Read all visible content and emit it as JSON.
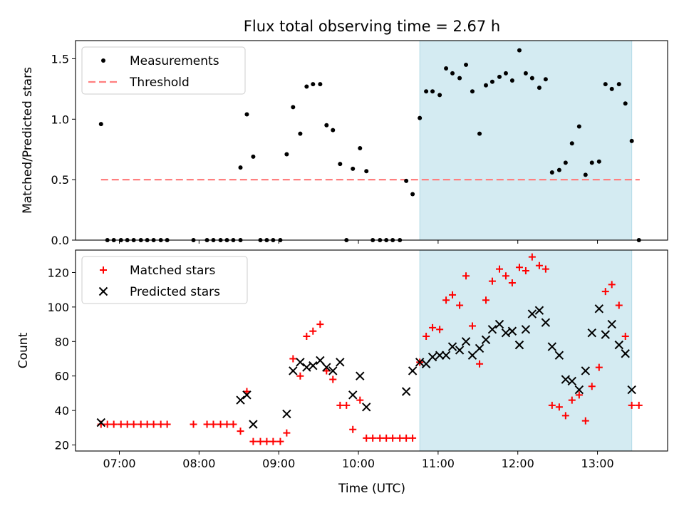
{
  "figure": {
    "title": "Flux total observing time = 2.67 h",
    "xlabel": "Time (UTC)",
    "colors": {
      "shade": "#add8e6",
      "measurement": "#000000",
      "threshold": "#ff7f7f",
      "matched": "#ff0000",
      "predicted": "#000000"
    }
  },
  "chart_data": [
    {
      "type": "scatter",
      "ylabel": "Matched/Predicted stars",
      "xlim": [
        6.45,
        13.88
      ],
      "ylim": [
        0,
        1.65
      ],
      "x_ticks": [
        7,
        8,
        9,
        10,
        11,
        12,
        13
      ],
      "x_tick_labels": [
        "07:00",
        "08:00",
        "09:00",
        "10:00",
        "11:00",
        "12:00",
        "13:00"
      ],
      "y_ticks": [
        0.0,
        0.5,
        1.0,
        1.5
      ],
      "y_tick_labels": [
        "0.0",
        "0.5",
        "1.0",
        "1.5"
      ],
      "shaded_span": [
        10.77,
        13.43
      ],
      "threshold": {
        "name": "Threshold",
        "y": 0.5,
        "x_range": [
          6.77,
          13.53
        ]
      },
      "legend": {
        "placement": "top-left",
        "entries": [
          "Measurements",
          "Threshold"
        ]
      },
      "series": [
        {
          "name": "Measurements",
          "marker": "dot",
          "points": [
            [
              6.77,
              0.96
            ],
            [
              6.85,
              0
            ],
            [
              6.93,
              0
            ],
            [
              7.02,
              0
            ],
            [
              7.1,
              0
            ],
            [
              7.18,
              0
            ],
            [
              7.27,
              0
            ],
            [
              7.35,
              0
            ],
            [
              7.43,
              0
            ],
            [
              7.52,
              0
            ],
            [
              7.6,
              0
            ],
            [
              7.93,
              0
            ],
            [
              8.1,
              0
            ],
            [
              8.18,
              0
            ],
            [
              8.27,
              0
            ],
            [
              8.35,
              0
            ],
            [
              8.43,
              0
            ],
            [
              8.52,
              0
            ],
            [
              8.52,
              0.6
            ],
            [
              8.6,
              1.04
            ],
            [
              8.68,
              0.69
            ],
            [
              8.77,
              0
            ],
            [
              8.85,
              0
            ],
            [
              8.93,
              0
            ],
            [
              9.02,
              0
            ],
            [
              9.1,
              0.71
            ],
            [
              9.18,
              1.1
            ],
            [
              9.27,
              0.88
            ],
            [
              9.35,
              1.27
            ],
            [
              9.43,
              1.29
            ],
            [
              9.52,
              1.29
            ],
            [
              9.6,
              0.95
            ],
            [
              9.68,
              0.91
            ],
            [
              9.77,
              0.63
            ],
            [
              9.85,
              0
            ],
            [
              9.93,
              0.59
            ],
            [
              10.02,
              0.76
            ],
            [
              10.1,
              0.57
            ],
            [
              10.18,
              0
            ],
            [
              10.27,
              0
            ],
            [
              10.35,
              0
            ],
            [
              10.43,
              0
            ],
            [
              10.52,
              0
            ],
            [
              10.6,
              0.49
            ],
            [
              10.68,
              0.38
            ],
            [
              10.77,
              1.01
            ],
            [
              10.85,
              1.23
            ],
            [
              10.93,
              1.23
            ],
            [
              11.02,
              1.2
            ],
            [
              11.1,
              1.42
            ],
            [
              11.18,
              1.38
            ],
            [
              11.27,
              1.34
            ],
            [
              11.35,
              1.45
            ],
            [
              11.43,
              1.23
            ],
            [
              11.52,
              0.88
            ],
            [
              11.6,
              1.28
            ],
            [
              11.68,
              1.31
            ],
            [
              11.77,
              1.35
            ],
            [
              11.85,
              1.38
            ],
            [
              11.93,
              1.32
            ],
            [
              12.02,
              1.57
            ],
            [
              12.1,
              1.38
            ],
            [
              12.18,
              1.34
            ],
            [
              12.27,
              1.26
            ],
            [
              12.35,
              1.33
            ],
            [
              12.43,
              0.56
            ],
            [
              12.52,
              0.58
            ],
            [
              12.6,
              0.64
            ],
            [
              12.68,
              0.8
            ],
            [
              12.77,
              0.94
            ],
            [
              12.85,
              0.54
            ],
            [
              12.93,
              0.64
            ],
            [
              13.02,
              0.65
            ],
            [
              13.1,
              1.29
            ],
            [
              13.18,
              1.25
            ],
            [
              13.27,
              1.29
            ],
            [
              13.35,
              1.13
            ],
            [
              13.43,
              0.82
            ],
            [
              13.52,
              0
            ]
          ]
        }
      ]
    },
    {
      "type": "scatter",
      "ylabel": "Count",
      "xlabel": "Time (UTC)",
      "xlim": [
        6.45,
        13.88
      ],
      "ylim": [
        16.5,
        133
      ],
      "x_ticks": [
        7,
        8,
        9,
        10,
        11,
        12,
        13
      ],
      "x_tick_labels": [
        "07:00",
        "08:00",
        "09:00",
        "10:00",
        "11:00",
        "12:00",
        "13:00"
      ],
      "y_ticks": [
        20,
        40,
        60,
        80,
        100,
        120
      ],
      "y_tick_labels": [
        "20",
        "40",
        "60",
        "80",
        "100",
        "120"
      ],
      "shaded_span": [
        10.77,
        13.43
      ],
      "legend": {
        "placement": "top-left",
        "entries": [
          "Matched stars",
          "Predicted stars"
        ]
      },
      "series": [
        {
          "name": "Matched stars",
          "marker": "plus",
          "points": [
            [
              6.77,
              32
            ],
            [
              6.85,
              32
            ],
            [
              6.93,
              32
            ],
            [
              7.02,
              32
            ],
            [
              7.1,
              32
            ],
            [
              7.18,
              32
            ],
            [
              7.27,
              32
            ],
            [
              7.35,
              32
            ],
            [
              7.43,
              32
            ],
            [
              7.52,
              32
            ],
            [
              7.6,
              32
            ],
            [
              7.93,
              32
            ],
            [
              8.1,
              32
            ],
            [
              8.18,
              32
            ],
            [
              8.27,
              32
            ],
            [
              8.35,
              32
            ],
            [
              8.43,
              32
            ],
            [
              8.52,
              28
            ],
            [
              8.6,
              51
            ],
            [
              8.68,
              22
            ],
            [
              8.77,
              22
            ],
            [
              8.85,
              22
            ],
            [
              8.93,
              22
            ],
            [
              9.02,
              22
            ],
            [
              9.1,
              27
            ],
            [
              9.18,
              70
            ],
            [
              9.27,
              60
            ],
            [
              9.35,
              83
            ],
            [
              9.43,
              86
            ],
            [
              9.52,
              90
            ],
            [
              9.6,
              63
            ],
            [
              9.68,
              58
            ],
            [
              9.77,
              43
            ],
            [
              9.85,
              43
            ],
            [
              9.93,
              29
            ],
            [
              10.02,
              46
            ],
            [
              10.1,
              24
            ],
            [
              10.18,
              24
            ],
            [
              10.27,
              24
            ],
            [
              10.35,
              24
            ],
            [
              10.43,
              24
            ],
            [
              10.52,
              24
            ],
            [
              10.6,
              24
            ],
            [
              10.68,
              24
            ],
            [
              10.77,
              68
            ],
            [
              10.85,
              83
            ],
            [
              10.93,
              88
            ],
            [
              11.02,
              87
            ],
            [
              11.1,
              104
            ],
            [
              11.18,
              107
            ],
            [
              11.27,
              101
            ],
            [
              11.35,
              118
            ],
            [
              11.43,
              89
            ],
            [
              11.52,
              67
            ],
            [
              11.6,
              104
            ],
            [
              11.68,
              115
            ],
            [
              11.77,
              122
            ],
            [
              11.85,
              118
            ],
            [
              11.93,
              114
            ],
            [
              12.02,
              123
            ],
            [
              12.1,
              121
            ],
            [
              12.18,
              129
            ],
            [
              12.27,
              124
            ],
            [
              12.35,
              122
            ],
            [
              12.43,
              43
            ],
            [
              12.52,
              42
            ],
            [
              12.6,
              37
            ],
            [
              12.68,
              46
            ],
            [
              12.77,
              49
            ],
            [
              12.85,
              34
            ],
            [
              12.93,
              54
            ],
            [
              13.02,
              65
            ],
            [
              13.1,
              109
            ],
            [
              13.18,
              113
            ],
            [
              13.27,
              101
            ],
            [
              13.35,
              83
            ],
            [
              13.43,
              43
            ],
            [
              13.52,
              43
            ]
          ]
        },
        {
          "name": "Predicted stars",
          "marker": "x",
          "points": [
            [
              6.77,
              33
            ],
            [
              8.52,
              46
            ],
            [
              8.6,
              49
            ],
            [
              8.68,
              32
            ],
            [
              9.1,
              38
            ],
            [
              9.18,
              63
            ],
            [
              9.27,
              68
            ],
            [
              9.35,
              65
            ],
            [
              9.43,
              66
            ],
            [
              9.52,
              69
            ],
            [
              9.6,
              65
            ],
            [
              9.68,
              63
            ],
            [
              9.77,
              68
            ],
            [
              9.93,
              49
            ],
            [
              10.02,
              60
            ],
            [
              10.1,
              42
            ],
            [
              10.6,
              51
            ],
            [
              10.68,
              63
            ],
            [
              10.77,
              68
            ],
            [
              10.85,
              67
            ],
            [
              10.93,
              71
            ],
            [
              11.02,
              72
            ],
            [
              11.1,
              72
            ],
            [
              11.18,
              77
            ],
            [
              11.27,
              75
            ],
            [
              11.35,
              80
            ],
            [
              11.43,
              72
            ],
            [
              11.52,
              76
            ],
            [
              11.6,
              81
            ],
            [
              11.68,
              87
            ],
            [
              11.77,
              90
            ],
            [
              11.85,
              85
            ],
            [
              11.93,
              86
            ],
            [
              12.02,
              78
            ],
            [
              12.1,
              87
            ],
            [
              12.18,
              96
            ],
            [
              12.27,
              98
            ],
            [
              12.35,
              91
            ],
            [
              12.43,
              77
            ],
            [
              12.52,
              72
            ],
            [
              12.6,
              58
            ],
            [
              12.68,
              57
            ],
            [
              12.77,
              52
            ],
            [
              12.85,
              63
            ],
            [
              12.93,
              85
            ],
            [
              13.02,
              99
            ],
            [
              13.1,
              84
            ],
            [
              13.18,
              90
            ],
            [
              13.27,
              78
            ],
            [
              13.35,
              73
            ],
            [
              13.43,
              52
            ]
          ]
        }
      ]
    }
  ]
}
